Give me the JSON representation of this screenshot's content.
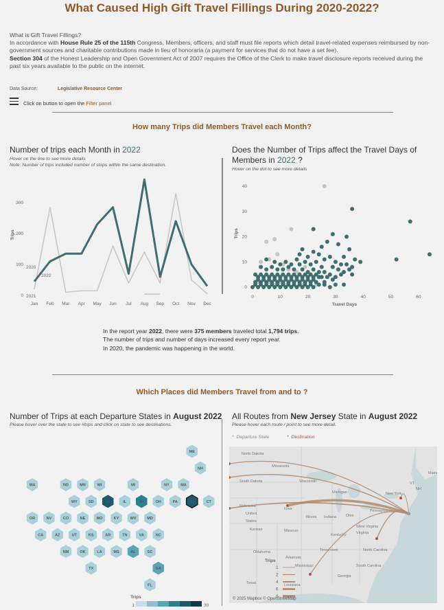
{
  "title": "What Caused High Gift Travel Fillings During 2020-2022?",
  "intro": {
    "q": "What is Gift Travel Fillings?",
    "p1a": "In accordance with ",
    "p1b": "House Rule 25 of the 115th",
    "p1c": " Congress, Members, officers, and staff must file reports which detail travel-related expenses reimbursed by non-government sources and charitable contributions made in lieu of honoraria (a payment for services that do not have a set fee).",
    "p2a": "Section 304",
    "p2b": " of the Honest Leadership and Open Government Act of 2007 requires the Office of the Clerk to make travel disclosure reports received during the past six years available to the public on the internet."
  },
  "source": {
    "label": "Data Source:",
    "link": "Legislative Resource Center"
  },
  "filter": {
    "text": "Click on button to open the ",
    "link": "Filter panel"
  },
  "section1": {
    "heading": "How many Trips did Members Travel each Month?"
  },
  "line_chart": {
    "title_pre": "Number of trips each Month in ",
    "year": "2022",
    "sub1": "Hover on the line to see more details",
    "sub2": "Note: Number of trips included number of stops within the same destination.",
    "ylabel": "Trips"
  },
  "scatter_chart": {
    "title_pre": "Does the Number of Trips affect the Travel Days of Members in ",
    "year": "2022",
    "title_post": " ?",
    "sub": "Hover on the dot to see more details",
    "ylabel": "Trips",
    "xlabel": "Travel Days"
  },
  "summary": {
    "l1a": "In the report year ",
    "year": "2022",
    "l1b": ", there were ",
    "members": "375 members",
    "l1c": " traveled total ",
    "trips": "1,794 trips",
    "l1d": ".",
    "l2": "The number of trips and number of days increased every report year.",
    "l3": "In 2020, the pandemic was happening in the world."
  },
  "section2": {
    "heading": "Which Places did Members Travel from and to ?"
  },
  "hexmap": {
    "title_pre": "Number of Trips at each Departure States in ",
    "period": "August 2022",
    "sub": "Please hover over the state to see #trips and click on state to see destinations.",
    "legend_title": "Trips",
    "legend_min": "1",
    "legend_max": "30"
  },
  "routemap": {
    "title_pre": "All Routes from ",
    "state": "New Jersey",
    "title_mid": " State in ",
    "period": "August 2022",
    "sub": "Please hover each route / point to see more detail.",
    "legend_departure": "Departure State",
    "legend_destination": "Destination",
    "trips_legend_title": "Trips",
    "trips_legend": [
      "1",
      "2",
      "4",
      "6",
      "8"
    ],
    "attribution": "© 2025 Mapbox © OpenStreetMap",
    "labels": [
      "North Dakota",
      "Minnesota",
      "South Dakota",
      "Wisconsin",
      "Michigan",
      "New York",
      "Nebraska",
      "Iowa",
      "United States",
      "Illinois",
      "Indiana",
      "Ohio",
      "Pennsylvania",
      "Kansas",
      "Missouri",
      "Kentucky",
      "West Virginia",
      "Virginia",
      "Oklahoma",
      "Arkansas",
      "Tennessee",
      "North Carolina",
      "South Carolina",
      "Mississippi",
      "Georgia",
      "Texas",
      "Louisiana",
      "Maine",
      "VT",
      "NH"
    ]
  },
  "colors": {
    "accent": "#8b5a2b",
    "teal": "#3f6e6e",
    "grey_line": "#c8c8c8",
    "hex_light": "#a9d1dc",
    "hex_dark": "#1e5a6e"
  },
  "chart_data": [
    {
      "type": "line",
      "categories": [
        "Jan",
        "Feb",
        "Mar",
        "Apr",
        "May",
        "Jun",
        "Jul",
        "Aug",
        "Sep",
        "Oct",
        "Nov",
        "Dec"
      ],
      "series": [
        {
          "name": "2022",
          "values": [
            45,
            110,
            135,
            135,
            230,
            285,
            70,
            375,
            60,
            240,
            100,
            30
          ]
        },
        {
          "name": "2020",
          "values": [
            20,
            285,
            10,
            15,
            15,
            160,
            40,
            140,
            40,
            330,
            50,
            5
          ]
        },
        {
          "name": "2021",
          "values": [
            null,
            null,
            null,
            null,
            null,
            null,
            null,
            4,
            4,
            null,
            null,
            null
          ]
        }
      ],
      "ylabel": "Trips",
      "ylim": [
        0,
        400
      ],
      "yticks": [
        0,
        100,
        200,
        300
      ]
    },
    {
      "type": "scatter",
      "xlabel": "Travel Days",
      "ylabel": "Trips",
      "xlim": [
        0,
        65
      ],
      "ylim": [
        0,
        43
      ],
      "xticks": [
        0,
        10,
        20,
        30,
        40,
        50,
        60
      ],
      "yticks": [
        0,
        10,
        20,
        30,
        40
      ],
      "series": [
        {
          "name": "2022",
          "points": [
            [
              36,
              31
            ],
            [
              57,
              26
            ],
            [
              64,
              13
            ],
            [
              52,
              11
            ],
            [
              22,
              23
            ],
            [
              29,
              21
            ],
            [
              34,
              20
            ],
            [
              27,
              18
            ],
            [
              31,
              17
            ],
            [
              25,
              16
            ],
            [
              18,
              15
            ],
            [
              22,
              14
            ],
            [
              35,
              15
            ],
            [
              17,
              13
            ],
            [
              20,
              12
            ],
            [
              24,
              13
            ],
            [
              28,
              12
            ],
            [
              33,
              12
            ],
            [
              37,
              11
            ],
            [
              39,
              10
            ],
            [
              16,
              11
            ],
            [
              19,
              10
            ],
            [
              23,
              10
            ],
            [
              26,
              11
            ],
            [
              30,
              10
            ],
            [
              32,
              9
            ],
            [
              34,
              9
            ],
            [
              36,
              8
            ],
            [
              5,
              11
            ],
            [
              8,
              10
            ],
            [
              10,
              9
            ],
            [
              12,
              10
            ],
            [
              14,
              9
            ],
            [
              17,
              9
            ],
            [
              21,
              9
            ],
            [
              25,
              8
            ],
            [
              29,
              8
            ],
            [
              31,
              7
            ],
            [
              33,
              6
            ],
            [
              35,
              7
            ],
            [
              3,
              8
            ],
            [
              5,
              7
            ],
            [
              7,
              8
            ],
            [
              9,
              7
            ],
            [
              11,
              7
            ],
            [
              13,
              8
            ],
            [
              15,
              7
            ],
            [
              18,
              7
            ],
            [
              20,
              6
            ],
            [
              22,
              7
            ],
            [
              24,
              6
            ],
            [
              26,
              6
            ],
            [
              28,
              5
            ],
            [
              30,
              4
            ],
            [
              32,
              5
            ],
            [
              36,
              5
            ],
            [
              1,
              5
            ],
            [
              2,
              4
            ],
            [
              3,
              5
            ],
            [
              4,
              4
            ],
            [
              5,
              5
            ],
            [
              6,
              4
            ],
            [
              7,
              5
            ],
            [
              8,
              4
            ],
            [
              9,
              5
            ],
            [
              10,
              4
            ],
            [
              11,
              5
            ],
            [
              12,
              4
            ],
            [
              13,
              5
            ],
            [
              14,
              4
            ],
            [
              15,
              5
            ],
            [
              16,
              4
            ],
            [
              17,
              5
            ],
            [
              18,
              4
            ],
            [
              19,
              5
            ],
            [
              20,
              4
            ],
            [
              21,
              5
            ],
            [
              22,
              4
            ],
            [
              23,
              5
            ],
            [
              24,
              4
            ],
            [
              25,
              4
            ],
            [
              27,
              4
            ],
            [
              1,
              2
            ],
            [
              2,
              3
            ],
            [
              3,
              2
            ],
            [
              4,
              3
            ],
            [
              5,
              2
            ],
            [
              6,
              3
            ],
            [
              7,
              2
            ],
            [
              8,
              3
            ],
            [
              9,
              2
            ],
            [
              10,
              3
            ],
            [
              11,
              2
            ],
            [
              12,
              3
            ],
            [
              13,
              2
            ],
            [
              14,
              3
            ],
            [
              15,
              2
            ],
            [
              16,
              3
            ],
            [
              17,
              2
            ],
            [
              18,
              3
            ],
            [
              19,
              2
            ],
            [
              20,
              3
            ],
            [
              21,
              2
            ],
            [
              22,
              3
            ],
            [
              23,
              2
            ],
            [
              26,
              2
            ],
            [
              29,
              3
            ],
            [
              0,
              0
            ],
            [
              1,
              1
            ],
            [
              2,
              0
            ],
            [
              3,
              1
            ],
            [
              4,
              0
            ],
            [
              5,
              1
            ],
            [
              6,
              0
            ],
            [
              7,
              1
            ],
            [
              8,
              0
            ],
            [
              9,
              1
            ],
            [
              10,
              0
            ],
            [
              11,
              1
            ],
            [
              12,
              0
            ],
            [
              13,
              1
            ],
            [
              14,
              0
            ],
            [
              15,
              1
            ],
            [
              16,
              0
            ],
            [
              17,
              1
            ],
            [
              18,
              0
            ],
            [
              19,
              1
            ],
            [
              20,
              0
            ],
            [
              21,
              1
            ],
            [
              22,
              0
            ],
            [
              24,
              1
            ],
            [
              26,
              1
            ],
            [
              28,
              0
            ],
            [
              30,
              1
            ],
            [
              33,
              1
            ]
          ]
        },
        {
          "name": "other years",
          "points": [
            [
              26,
              40
            ],
            [
              14,
              23
            ],
            [
              5,
              18
            ],
            [
              8,
              19
            ],
            [
              3,
              10
            ],
            [
              6,
              11
            ],
            [
              9,
              13
            ],
            [
              11,
              9
            ],
            [
              13,
              7
            ],
            [
              16,
              6
            ],
            [
              19,
              8
            ],
            [
              2,
              2
            ],
            [
              4,
              3
            ],
            [
              6,
              2
            ],
            [
              8,
              1
            ],
            [
              10,
              2
            ],
            [
              12,
              1
            ],
            [
              15,
              2
            ],
            [
              18,
              1
            ],
            [
              21,
              2
            ],
            [
              23,
              1
            ]
          ]
        }
      ]
    }
  ],
  "hexmap_data": [
    {
      "s": "ME",
      "c": 10,
      "r": 0,
      "v": 1
    },
    {
      "s": "NH",
      "c": 10,
      "r": 1,
      "v": 1
    },
    {
      "s": "WA",
      "c": 0,
      "r": 2,
      "v": 1
    },
    {
      "s": "ND",
      "c": 2,
      "r": 2,
      "v": 1
    },
    {
      "s": "MN",
      "c": 3,
      "r": 2,
      "v": 1
    },
    {
      "s": "WI",
      "c": 4,
      "r": 2,
      "v": 1
    },
    {
      "s": "MI",
      "c": 6,
      "r": 2,
      "v": 1
    },
    {
      "s": "NY",
      "c": 8,
      "r": 2,
      "v": 2
    },
    {
      "s": "MA",
      "c": 9,
      "r": 2,
      "v": 1
    },
    {
      "s": "WY",
      "c": 2,
      "r": 3,
      "v": 1
    },
    {
      "s": "SD",
      "c": 3,
      "r": 3,
      "v": 1
    },
    {
      "s": "IA",
      "c": 4,
      "r": 3,
      "v": 25
    },
    {
      "s": "IL",
      "c": 5,
      "r": 3,
      "v": 2
    },
    {
      "s": "IN",
      "c": 6,
      "r": 3,
      "v": 20
    },
    {
      "s": "OH",
      "c": 7,
      "r": 3,
      "v": 2
    },
    {
      "s": "PA",
      "c": 8,
      "r": 3,
      "v": 1
    },
    {
      "s": "NJ",
      "c": 9,
      "r": 3,
      "v": 22
    },
    {
      "s": "CT",
      "c": 10,
      "r": 3,
      "v": 1
    },
    {
      "s": "OR",
      "c": 0,
      "r": 4,
      "v": 1
    },
    {
      "s": "NV",
      "c": 1,
      "r": 4,
      "v": 1
    },
    {
      "s": "CO",
      "c": 2,
      "r": 4,
      "v": 1
    },
    {
      "s": "NE",
      "c": 3,
      "r": 4,
      "v": 1
    },
    {
      "s": "MO",
      "c": 4,
      "r": 4,
      "v": 1
    },
    {
      "s": "KY",
      "c": 5,
      "r": 4,
      "v": 1
    },
    {
      "s": "WV",
      "c": 6,
      "r": 4,
      "v": 1
    },
    {
      "s": "MD",
      "c": 7,
      "r": 4,
      "v": 1
    },
    {
      "s": "CA",
      "c": 0,
      "r": 5,
      "v": 1
    },
    {
      "s": "AZ",
      "c": 1,
      "r": 5,
      "v": 1
    },
    {
      "s": "UT",
      "c": 2,
      "r": 5,
      "v": 1
    },
    {
      "s": "KS",
      "c": 3,
      "r": 5,
      "v": 1
    },
    {
      "s": "AR",
      "c": 4,
      "r": 5,
      "v": 1
    },
    {
      "s": "TN",
      "c": 5,
      "r": 5,
      "v": 1
    },
    {
      "s": "VA",
      "c": 6,
      "r": 5,
      "v": 1
    },
    {
      "s": "NC",
      "c": 7,
      "r": 5,
      "v": 1
    },
    {
      "s": "NM",
      "c": 2,
      "r": 6,
      "v": 1
    },
    {
      "s": "OK",
      "c": 3,
      "r": 6,
      "v": 1
    },
    {
      "s": "LA",
      "c": 4,
      "r": 6,
      "v": 1
    },
    {
      "s": "MS",
      "c": 5,
      "r": 6,
      "v": 1
    },
    {
      "s": "AL",
      "c": 6,
      "r": 6,
      "v": 8
    },
    {
      "s": "SC",
      "c": 7,
      "r": 6,
      "v": 1
    },
    {
      "s": "TX",
      "c": 3,
      "r": 7,
      "v": 1
    },
    {
      "s": "GA",
      "c": 7,
      "r": 7,
      "v": 8
    },
    {
      "s": "FL",
      "c": 7,
      "r": 8,
      "v": 1
    }
  ]
}
